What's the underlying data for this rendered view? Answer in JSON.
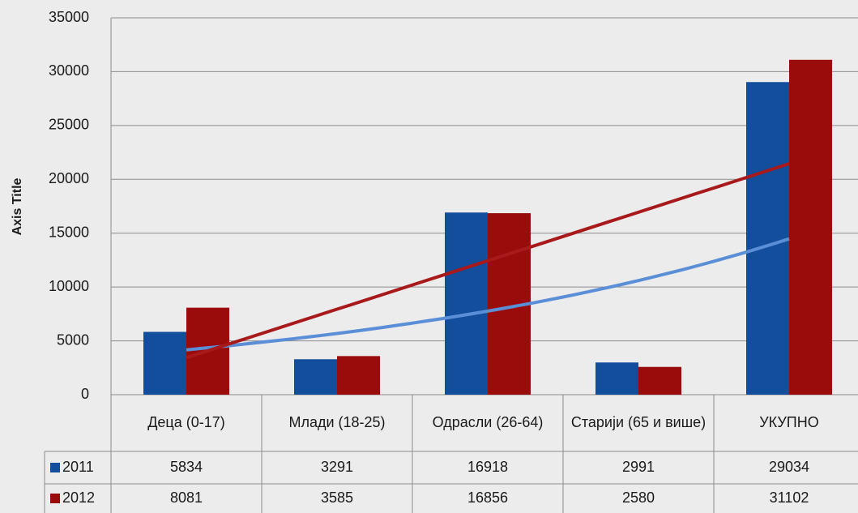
{
  "chart_data": {
    "type": "bar",
    "y_axis_title": "Axis Title",
    "categories": [
      "Деца (0-17)",
      "Млади (18-25)",
      "Одрасли (26-64)",
      "Старији (65 и више)",
      "УКУПНО"
    ],
    "series": [
      {
        "name": "2011",
        "color": "#124e9b",
        "values": [
          5834,
          3291,
          16918,
          2991,
          29034
        ],
        "trendline": "exponential",
        "trendline_color": "#5a8ed6"
      },
      {
        "name": "2012",
        "color": "#9a0c0c",
        "values": [
          8081,
          3585,
          16856,
          2580,
          31102
        ],
        "trendline": "linear",
        "trendline_color": "#a8191c"
      }
    ],
    "ylim": [
      0,
      35000
    ],
    "yticks": [
      0,
      5000,
      10000,
      15000,
      20000,
      25000,
      30000,
      35000
    ],
    "grid": true,
    "data_table": true
  }
}
